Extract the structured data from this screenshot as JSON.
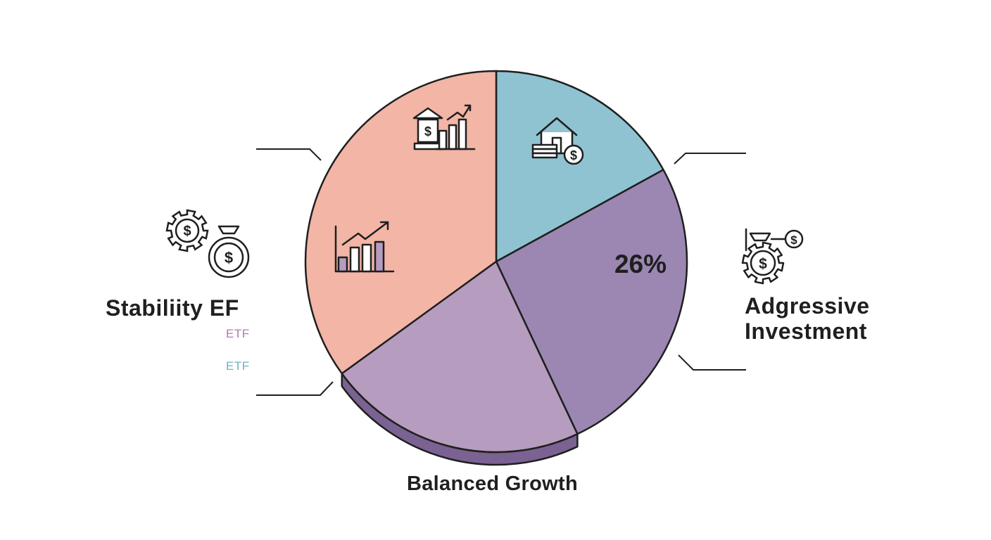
{
  "chart_data": {
    "type": "pie",
    "title": "",
    "slices": [
      {
        "label": "",
        "value": 17,
        "color": "#8fc3d1"
      },
      {
        "label": "",
        "value": 26,
        "color": "#9b87b2",
        "value_label": "26%"
      },
      {
        "label": "Balanced Growth",
        "value": 22,
        "color": "#b69cbf",
        "exploded": true
      },
      {
        "label": "",
        "value": 35,
        "color": "#f2b5a6"
      }
    ],
    "edge_color": "#1f1f1f",
    "exploded_edge_color": "#7a6292"
  },
  "labels": {
    "stability": "Stabiliity  EF",
    "etf_1": "ETF",
    "etf_2": "ETF",
    "aggressive_line1": "Adgressive",
    "aggressive_line2": "Investment",
    "balanced": "Balanced Growth"
  },
  "colors": {
    "etf_1": "#b07ab5",
    "etf_2": "#6bb5c0",
    "text": "#1f1f1f"
  },
  "icons": {
    "teal_slice": "house-coin-stack-icon",
    "salmon_slice_top": "bank-bar-chart-icon",
    "salmon_slice_mid": "bar-chart-trend-icon",
    "left_group": [
      "gear-dollar-icon",
      "money-bag-dollar-icon"
    ],
    "right_group": [
      "bag-gear-dollar-icon"
    ]
  }
}
